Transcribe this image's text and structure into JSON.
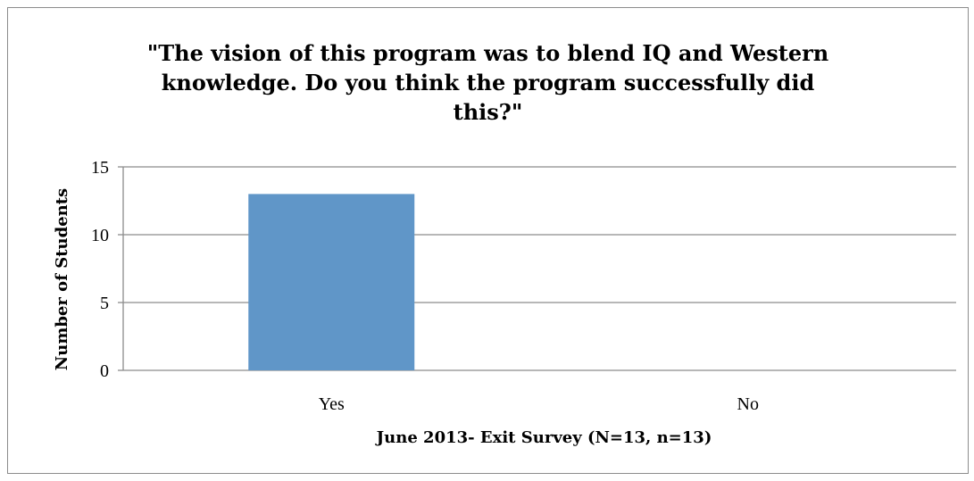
{
  "chart_data": {
    "type": "bar",
    "title_lines": [
      "\"The vision of this program was to blend IQ and Western",
      "knowledge. Do you think the program successfully did",
      "this?\""
    ],
    "categories": [
      "Yes",
      "No"
    ],
    "values": [
      13,
      0
    ],
    "xlabel": "June 2013- Exit Survey  (N=13, n=13)",
    "ylabel": "Number of Students",
    "ylim": [
      0,
      15
    ],
    "yticks": [
      0,
      5,
      10,
      15
    ],
    "grid": true,
    "bar_color": "#6096c8",
    "grid_color": "#8c8c8c"
  }
}
